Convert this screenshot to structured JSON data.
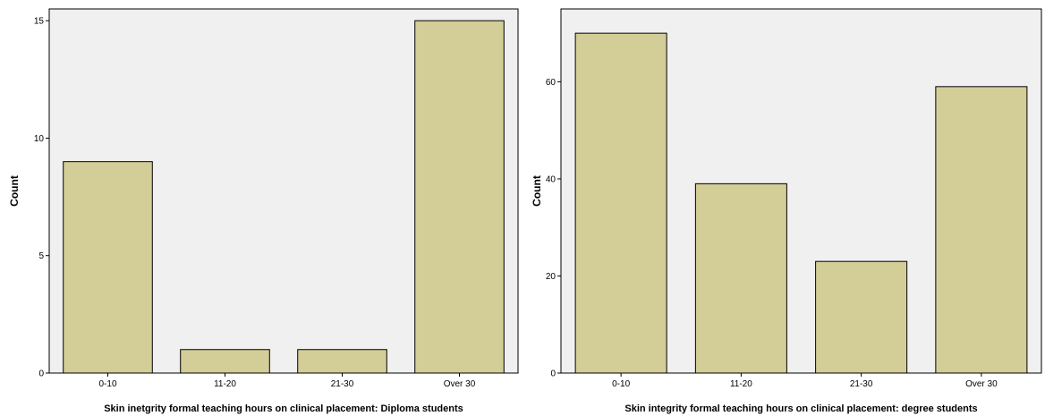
{
  "chart_data": [
    {
      "type": "bar",
      "categories": [
        "0-10",
        "11-20",
        "21-30",
        "Over 30"
      ],
      "values": [
        9,
        1,
        1,
        15
      ],
      "title": "",
      "xlabel": "Skin inetgrity formal teaching hours on clinical placement: Diploma students",
      "ylabel": "Count",
      "ylim": [
        0,
        15.5
      ],
      "yticks": [
        0,
        5,
        10,
        15
      ],
      "grid": false,
      "bar_color": "#d3ce97",
      "background_color": "#f0f0f0"
    },
    {
      "type": "bar",
      "categories": [
        "0-10",
        "11-20",
        "21-30",
        "Over 30"
      ],
      "values": [
        70,
        39,
        23,
        59
      ],
      "title": "",
      "xlabel": "Skin integrity formal teaching hours on clinical placement: degree students",
      "ylabel": "Count",
      "ylim": [
        0,
        75
      ],
      "yticks": [
        0,
        20,
        40,
        60
      ],
      "grid": false,
      "bar_color": "#d3ce97",
      "background_color": "#f0f0f0"
    }
  ]
}
